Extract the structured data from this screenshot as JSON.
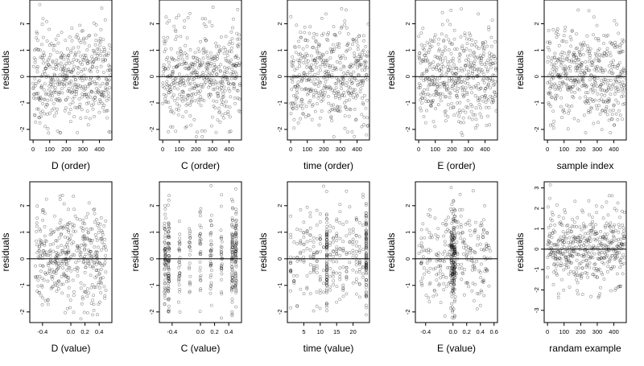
{
  "chart_data": [
    {
      "type": "scatter",
      "xlabel": "D (order)",
      "ylabel": "residuals",
      "xlim": [
        -20,
        475
      ],
      "ylim": [
        -2.4,
        2.9
      ],
      "xticks": [
        0,
        100,
        200,
        300,
        400
      ],
      "xticklabels": [
        "0",
        "100",
        "200",
        "300",
        "400"
      ],
      "yticks": [
        -2,
        -1,
        0,
        1,
        2
      ],
      "yticklabels": [
        "-2",
        "-1",
        "0",
        "1",
        "2"
      ],
      "hline": 0,
      "points": {
        "gen": "index",
        "n": 470,
        "seed": 11
      }
    },
    {
      "type": "scatter",
      "xlabel": "C (order)",
      "ylabel": "residuals",
      "xlim": [
        -20,
        475
      ],
      "ylim": [
        -2.4,
        2.9
      ],
      "xticks": [
        0,
        100,
        200,
        300,
        400
      ],
      "xticklabels": [
        "0",
        "100",
        "200",
        "300",
        "400"
      ],
      "yticks": [
        -2,
        -1,
        0,
        1,
        2
      ],
      "yticklabels": [
        "-2",
        "-1",
        "0",
        "1",
        "2"
      ],
      "hline": 0,
      "points": {
        "gen": "index",
        "n": 470,
        "seed": 23
      }
    },
    {
      "type": "scatter",
      "xlabel": "time (order)",
      "ylabel": "residuals",
      "xlim": [
        -20,
        475
      ],
      "ylim": [
        -2.4,
        2.9
      ],
      "xticks": [
        0,
        100,
        200,
        300,
        400
      ],
      "xticklabels": [
        "0",
        "100",
        "200",
        "300",
        "400"
      ],
      "yticks": [
        -2,
        -1,
        0,
        1,
        2
      ],
      "yticklabels": [
        "-2",
        "-1",
        "0",
        "1",
        "2"
      ],
      "hline": 0,
      "points": {
        "gen": "index",
        "n": 470,
        "seed": 37
      }
    },
    {
      "type": "scatter",
      "xlabel": "E (order)",
      "ylabel": "residuals",
      "xlim": [
        -20,
        475
      ],
      "ylim": [
        -2.4,
        2.9
      ],
      "xticks": [
        0,
        100,
        200,
        300,
        400
      ],
      "xticklabels": [
        "0",
        "100",
        "200",
        "300",
        "400"
      ],
      "yticks": [
        -2,
        -1,
        0,
        1,
        2
      ],
      "yticklabels": [
        "-2",
        "-1",
        "0",
        "1",
        "2"
      ],
      "hline": 0,
      "points": {
        "gen": "index",
        "n": 470,
        "seed": 41
      }
    },
    {
      "type": "scatter",
      "xlabel": "sample index",
      "ylabel": "residuals",
      "xlim": [
        -20,
        475
      ],
      "ylim": [
        -2.4,
        2.9
      ],
      "xticks": [
        0,
        100,
        200,
        300,
        400
      ],
      "xticklabels": [
        "0",
        "100",
        "200",
        "300",
        "400"
      ],
      "yticks": [
        -2,
        -1,
        0,
        1,
        2
      ],
      "yticklabels": [
        "-2",
        "-1",
        "0",
        "1",
        "2"
      ],
      "hline": 0,
      "points": {
        "gen": "index",
        "n": 470,
        "seed": 53
      }
    },
    {
      "type": "scatter",
      "xlabel": "D (value)",
      "ylabel": "residuals",
      "xlim": [
        -0.58,
        0.58
      ],
      "ylim": [
        -2.4,
        2.9
      ],
      "xticks": [
        -0.4,
        0,
        0.2,
        0.4
      ],
      "xticklabels": [
        "-0.4",
        "0.0",
        "0.2",
        "0.4"
      ],
      "yticks": [
        -2,
        -1,
        0,
        1,
        2
      ],
      "yticklabels": [
        "-2",
        "-1",
        "0",
        "1",
        "2"
      ],
      "hline": 0,
      "points": {
        "gen": "uniform",
        "n": 420,
        "seed": 61,
        "lo": -0.5,
        "hi": 0.5
      }
    },
    {
      "type": "scatter",
      "xlabel": "C (value)",
      "ylabel": "residuals",
      "xlim": [
        -0.58,
        0.58
      ],
      "ylim": [
        -2.4,
        2.9
      ],
      "xticks": [
        -0.4,
        0,
        0.2,
        0.4
      ],
      "xticklabels": [
        "-0.4",
        "0.0",
        "0.2",
        "0.4"
      ],
      "yticks": [
        -2,
        -1,
        0,
        1,
        2
      ],
      "yticklabels": [
        "-2",
        "-1",
        "0",
        "1",
        "2"
      ],
      "hline": 0,
      "points": {
        "gen": "discrete",
        "n": 420,
        "seed": 73,
        "levels": [
          -0.5,
          -0.45,
          -0.3,
          -0.15,
          0,
          0.15,
          0.3,
          0.45,
          0.5
        ],
        "heavy": [
          -0.5,
          -0.45,
          0.45,
          0.5
        ],
        "jitter": 0.01
      }
    },
    {
      "type": "scatter",
      "xlabel": "time (value)",
      "ylabel": "residuals",
      "xlim": [
        0,
        25
      ],
      "ylim": [
        -2.4,
        2.9
      ],
      "xticks": [
        5,
        10,
        15,
        20
      ],
      "xticklabels": [
        "5",
        "10",
        "15",
        "20"
      ],
      "yticks": [
        -2,
        -1,
        0,
        1,
        2
      ],
      "yticklabels": [
        "-2",
        "-1",
        "0",
        "1",
        "2"
      ],
      "hline": 0,
      "points": {
        "gen": "discrete",
        "n": 420,
        "seed": 83,
        "levels": [
          1,
          2,
          3,
          4,
          5,
          6,
          7,
          8,
          9,
          10,
          11,
          12,
          13,
          14,
          15,
          16,
          17,
          18,
          19,
          20,
          21,
          22,
          23,
          24
        ],
        "heavy": [
          12,
          24
        ],
        "jitter": 0.05
      }
    },
    {
      "type": "scatter",
      "xlabel": "E (value)",
      "ylabel": "residuals",
      "xlim": [
        -0.55,
        0.65
      ],
      "ylim": [
        -2.4,
        2.9
      ],
      "xticks": [
        -0.4,
        0,
        0.2,
        0.4,
        0.6
      ],
      "xticklabels": [
        "-0.4",
        "0.0",
        "0.2",
        "0.4",
        "0.6"
      ],
      "yticks": [
        -2,
        -1,
        0,
        1,
        2
      ],
      "yticklabels": [
        "-2",
        "-1",
        "0",
        "1",
        "2"
      ],
      "hline": 0,
      "points": {
        "gen": "peaked",
        "n": 430,
        "seed": 97,
        "lo": -0.5,
        "hi": 0.55,
        "center": 0,
        "frac": 0.4,
        "spread": 0.035
      }
    },
    {
      "type": "scatter",
      "xlabel": "randam example",
      "ylabel": "residuals",
      "xlim": [
        -20,
        475
      ],
      "ylim": [
        -3.6,
        3.3
      ],
      "xticks": [
        0,
        100,
        200,
        300,
        400
      ],
      "xticklabels": [
        "0",
        "100",
        "200",
        "300",
        "400"
      ],
      "yticks": [
        -3,
        -2,
        -1,
        0,
        1,
        2,
        3
      ],
      "yticklabels": [
        "-3",
        "-2",
        "-1",
        "0",
        "1",
        "2",
        "3"
      ],
      "hline": 0,
      "points": {
        "gen": "index",
        "n": 470,
        "seed": 101
      }
    }
  ]
}
